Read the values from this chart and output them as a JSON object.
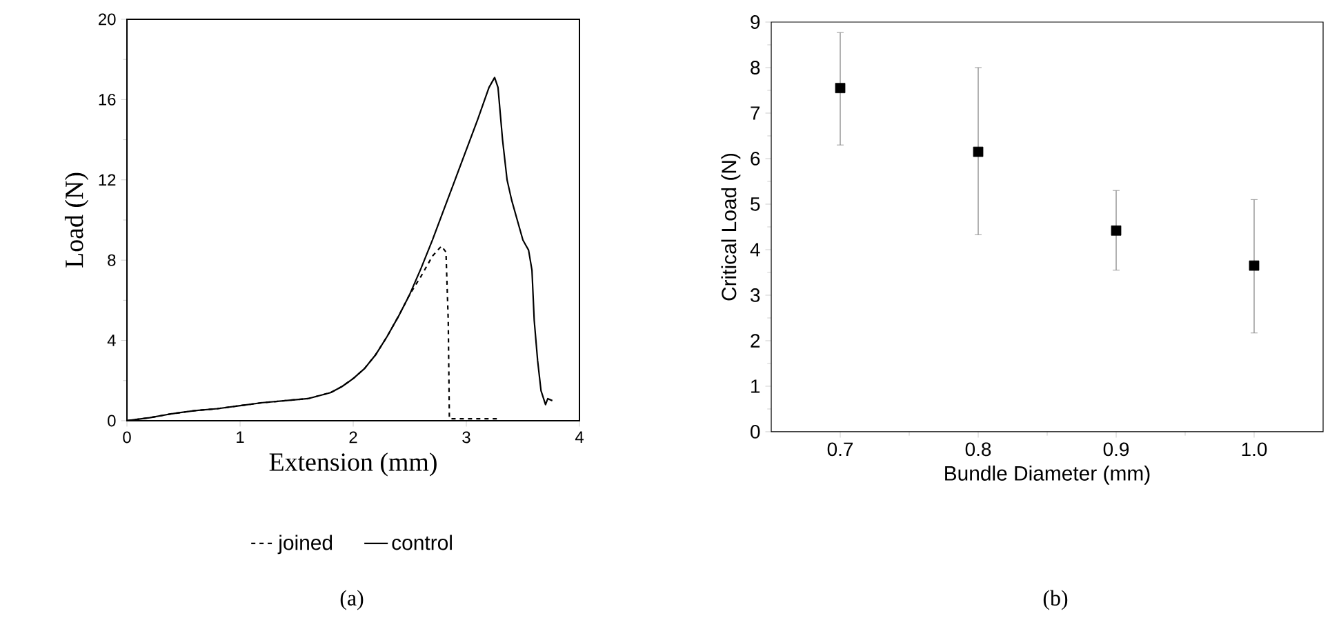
{
  "chart_data": [
    {
      "type": "line",
      "xlabel": "Extension (mm)",
      "ylabel": "Load (N)",
      "xlim": [
        0,
        4
      ],
      "ylim": [
        0,
        20
      ],
      "xticks": [
        0,
        1,
        2,
        3,
        4
      ],
      "yticks": [
        0,
        4,
        8,
        12,
        16,
        20
      ],
      "legend": "bottom",
      "marker": "none",
      "annotations": [
        "(a)"
      ],
      "series": [
        {
          "name": "joined",
          "color": "#000000",
          "line_style": "dashed",
          "x": [
            0,
            0.2,
            0.4,
            0.6,
            0.8,
            1.0,
            1.2,
            1.4,
            1.6,
            1.8,
            1.9,
            2.0,
            2.1,
            2.2,
            2.3,
            2.4,
            2.5,
            2.6,
            2.7,
            2.78,
            2.82,
            2.84,
            2.85,
            3.3
          ],
          "values": [
            0,
            0.15,
            0.35,
            0.5,
            0.6,
            0.75,
            0.9,
            1.0,
            1.1,
            1.4,
            1.7,
            2.1,
            2.6,
            3.3,
            4.2,
            5.2,
            6.3,
            7.2,
            8.2,
            8.7,
            8.4,
            5.0,
            0.1,
            0.1
          ]
        },
        {
          "name": "control",
          "color": "#000000",
          "line_style": "solid",
          "x": [
            0,
            0.2,
            0.4,
            0.6,
            0.8,
            1.0,
            1.2,
            1.4,
            1.6,
            1.8,
            1.9,
            2.0,
            2.1,
            2.2,
            2.3,
            2.4,
            2.5,
            2.6,
            2.7,
            2.8,
            2.9,
            3.0,
            3.1,
            3.2,
            3.25,
            3.28,
            3.32,
            3.36,
            3.4,
            3.45,
            3.5,
            3.55,
            3.58,
            3.6,
            3.63,
            3.66,
            3.7,
            3.72,
            3.76
          ],
          "values": [
            0,
            0.15,
            0.35,
            0.5,
            0.6,
            0.75,
            0.9,
            1.0,
            1.1,
            1.4,
            1.7,
            2.1,
            2.6,
            3.3,
            4.2,
            5.2,
            6.3,
            7.6,
            9.0,
            10.5,
            12.0,
            13.5,
            15.0,
            16.6,
            17.1,
            16.6,
            14.0,
            12.0,
            11.0,
            10.0,
            9.0,
            8.5,
            7.5,
            5.0,
            3.0,
            1.5,
            0.8,
            1.1,
            1.0
          ]
        }
      ]
    },
    {
      "type": "scatter",
      "xlabel": "Bundle Diameter (mm)",
      "ylabel": "Critical Load (N)",
      "xlim": [
        0.65,
        1.05
      ],
      "ylim": [
        0,
        9
      ],
      "xticks": [
        0.7,
        0.8,
        0.9,
        {
          "value": 1.0,
          "label": "1.0"
        }
      ],
      "yticks": [
        0,
        1,
        2,
        3,
        4,
        5,
        6,
        7,
        8,
        9
      ],
      "marker": "square",
      "annotations": [
        "(b)"
      ],
      "series": [
        {
          "color": "#000000",
          "x": [
            0.7,
            0.8,
            0.9,
            1.0
          ],
          "values": [
            7.55,
            6.15,
            4.42,
            3.65
          ],
          "errors": [
            [
              6.3,
              8.77
            ],
            [
              4.33,
              8.0
            ],
            [
              3.55,
              5.3
            ],
            [
              2.17,
              5.1
            ]
          ]
        }
      ]
    }
  ]
}
